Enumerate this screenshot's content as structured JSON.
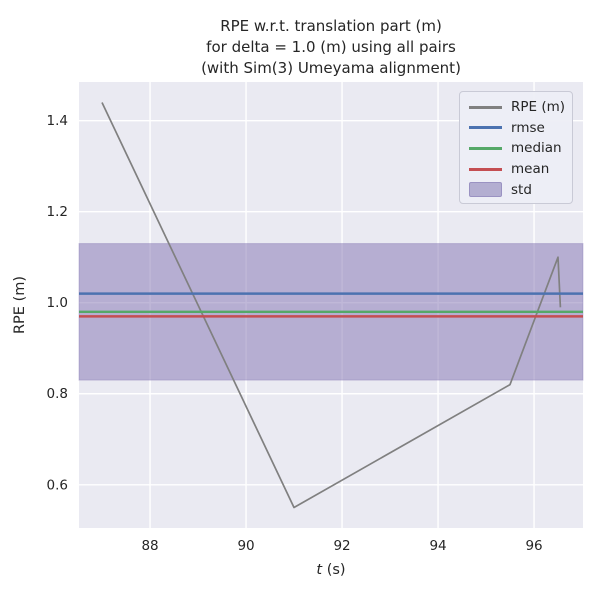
{
  "title": {
    "line1": "RPE w.r.t. translation part (m)",
    "line2": "for delta = 1.0 (m) using all pairs",
    "line3": "(with Sim(3) Umeyama alignment)"
  },
  "axes": {
    "xlabel_var": "t",
    "xlabel_unit": " (s)",
    "ylabel": "RPE (m)"
  },
  "chart_data": {
    "type": "line",
    "title": "RPE w.r.t. translation part (m)\nfor delta = 1.0 (m) using all pairs\n(with Sim(3) Umeyama alignment)",
    "xlabel": "t (s)",
    "ylabel": "RPE (m)",
    "xlim": [
      86.52,
      97.02
    ],
    "ylim": [
      0.505,
      1.485
    ],
    "xticks": [
      88,
      90,
      92,
      94,
      96
    ],
    "yticks": [
      0.6,
      0.8,
      1.0,
      1.2,
      1.4
    ],
    "grid": true,
    "legend_position": "upper right",
    "series": [
      {
        "name": "RPE (m)",
        "kind": "line",
        "color": "#808080",
        "x": [
          87.0,
          91.0,
          95.5,
          96.5,
          96.55
        ],
        "y": [
          1.44,
          0.55,
          0.82,
          1.1,
          0.99
        ]
      },
      {
        "name": "rmse",
        "kind": "hline",
        "color": "#4c72b0",
        "value": 1.02
      },
      {
        "name": "median",
        "kind": "hline",
        "color": "#55a868",
        "value": 0.98
      },
      {
        "name": "mean",
        "kind": "hline",
        "color": "#c44e52",
        "value": 0.97
      }
    ],
    "band": {
      "name": "std",
      "color": "#8172b2",
      "opacity": 0.5,
      "from": 0.83,
      "to": 1.13
    },
    "legend": [
      {
        "label": "RPE (m)",
        "swatch": "line",
        "color": "#808080"
      },
      {
        "label": "rmse",
        "swatch": "line",
        "color": "#4c72b0"
      },
      {
        "label": "median",
        "swatch": "line",
        "color": "#55a868"
      },
      {
        "label": "mean",
        "swatch": "line",
        "color": "#c44e52"
      },
      {
        "label": "std",
        "swatch": "patch",
        "color": "#b3aed1"
      }
    ],
    "colors": {
      "background": "#eaeaf2",
      "grid": "#ffffff",
      "text": "#262626"
    }
  }
}
